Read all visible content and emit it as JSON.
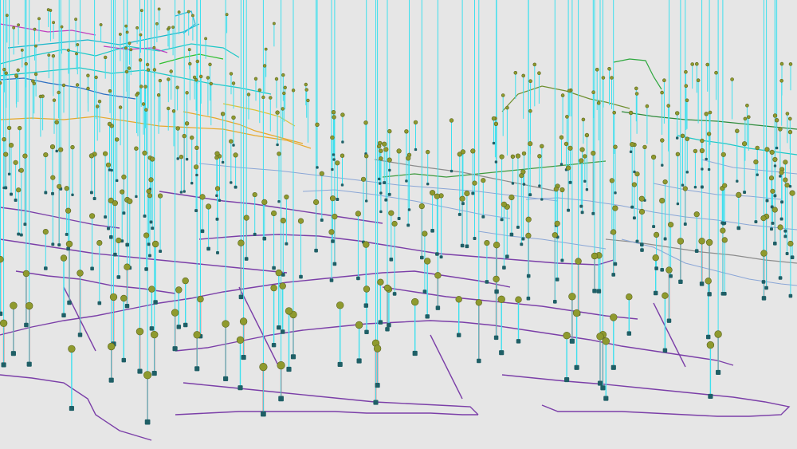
{
  "scene": {
    "background": "#e6e6e6",
    "colors": {
      "network_near": "#7b3fa8",
      "network_mid": "#8aa6d6",
      "network_far_teal": "#1fc7c7",
      "network_far_orange": "#e6a82a",
      "network_far_green": "#3f9a3f",
      "network_far_magenta": "#c040c0",
      "network_far_olive": "#6f8f2f",
      "stem_ok": "#3ee0ee",
      "stem_alert": "#e02020",
      "node_marker": "#8f9a2e",
      "base_marker": "#1f5f66"
    }
  }
}
